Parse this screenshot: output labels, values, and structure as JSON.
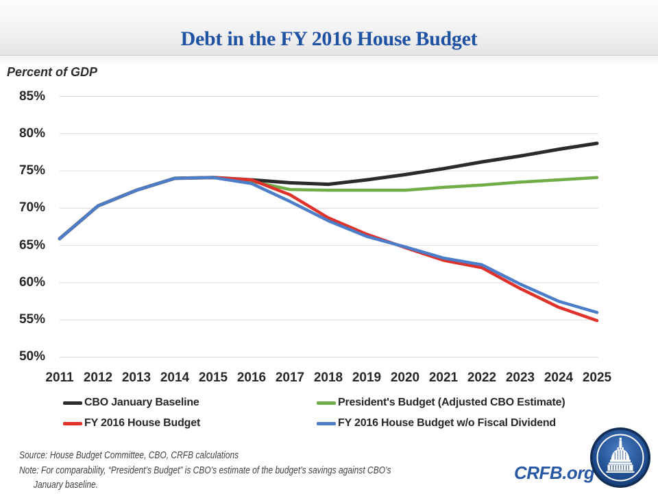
{
  "header": {
    "title": "Debt in the FY 2016 House Budget"
  },
  "chart_data": {
    "type": "line",
    "title": "Debt in the FY 2016 House Budget",
    "ylabel": "Percent of GDP",
    "xlabel": "",
    "x": [
      2011,
      2012,
      2013,
      2014,
      2015,
      2016,
      2017,
      2018,
      2019,
      2020,
      2021,
      2022,
      2023,
      2024,
      2025
    ],
    "series": [
      {
        "name": "CBO January Baseline",
        "color": "#2b2b2b",
        "values": [
          65.9,
          70.3,
          72.4,
          74.0,
          74.1,
          73.8,
          73.4,
          73.2,
          73.8,
          74.5,
          75.3,
          76.2,
          77.0,
          77.9,
          78.7
        ]
      },
      {
        "name": "President's Budget (Adjusted CBO Estimate)",
        "color": "#70ad47",
        "values": [
          65.9,
          70.3,
          72.4,
          74.0,
          74.1,
          73.6,
          72.5,
          72.4,
          72.4,
          72.4,
          72.8,
          73.1,
          73.5,
          73.8,
          74.1
        ]
      },
      {
        "name": "FY 2016 House Budget",
        "color": "#e0312b",
        "values": [
          65.9,
          70.3,
          72.4,
          74.0,
          74.1,
          73.8,
          71.8,
          68.7,
          66.5,
          64.7,
          63.0,
          62.0,
          59.2,
          56.7,
          54.9
        ]
      },
      {
        "name": "FY 2016 House Budget w/o Fiscal Dividend",
        "color": "#4b7dc8",
        "values": [
          65.9,
          70.3,
          72.4,
          74.0,
          74.1,
          73.3,
          70.9,
          68.3,
          66.2,
          64.8,
          63.3,
          62.4,
          59.8,
          57.5,
          56.0
        ]
      }
    ],
    "ylim": [
      50,
      85
    ],
    "y_ticks": [
      85,
      80,
      75,
      70,
      65,
      60,
      55,
      50
    ],
    "y_tick_suffix": "%",
    "grid": "horizontal",
    "legend_position": "bottom"
  },
  "legend": {
    "items": [
      {
        "label": "CBO January Baseline",
        "color": "#2b2b2b"
      },
      {
        "label": "President's Budget (Adjusted CBO Estimate)",
        "color": "#70ad47"
      },
      {
        "label": "FY 2016 House Budget",
        "color": "#e0312b"
      },
      {
        "label": "FY 2016 House Budget w/o Fiscal Dividend",
        "color": "#4b7dc8"
      }
    ]
  },
  "footer": {
    "source": "Source: House Budget Committee, CBO, CRFB calculations",
    "note_line1": "Note: For comparability, “President’s Budget” is CBO’s estimate of the budget’s savings against CBO’s",
    "note_line2": "January baseline.",
    "brand": "CRFB.org",
    "brand_color": "#2857a4",
    "logo_icon": "capitol-dome-icon"
  }
}
